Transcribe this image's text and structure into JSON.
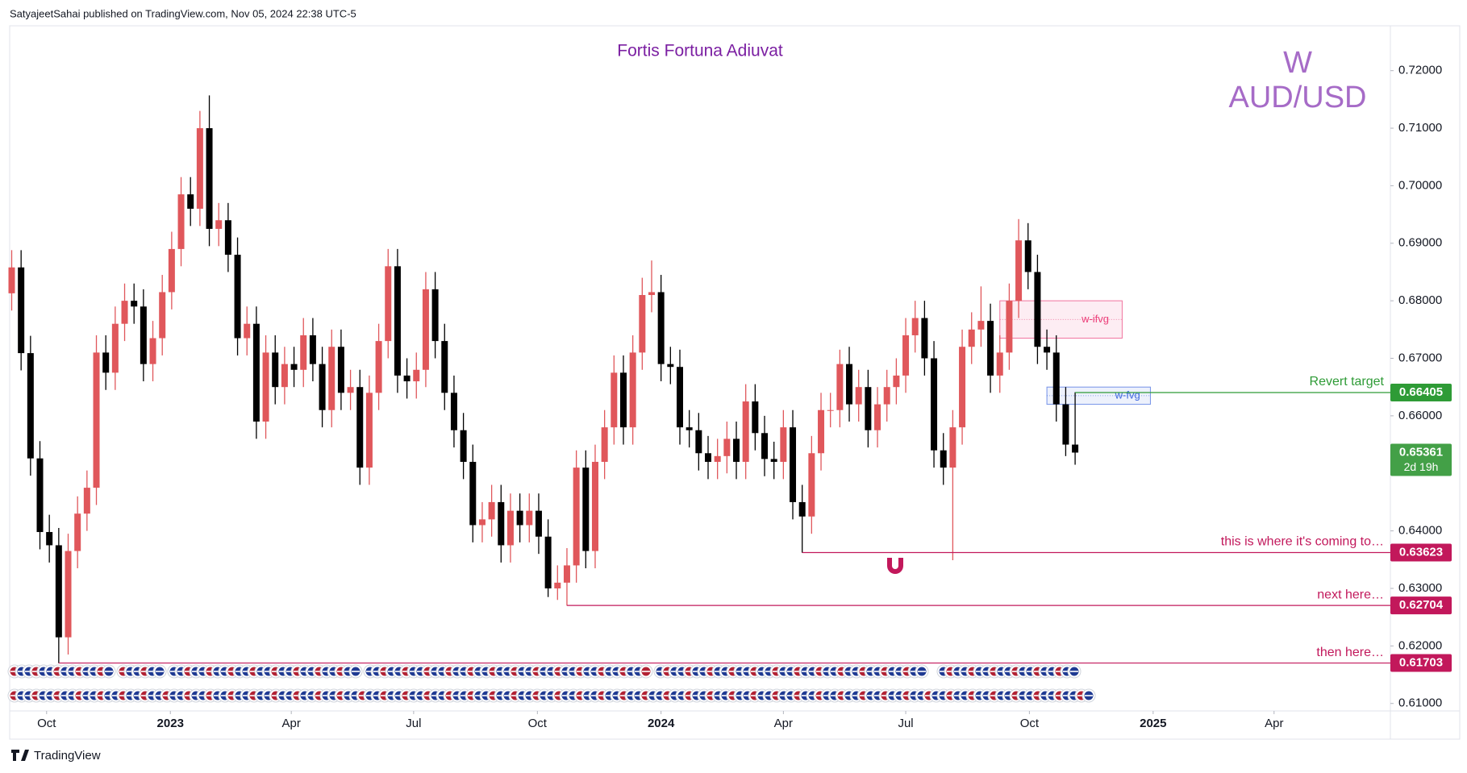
{
  "header": {
    "byline": "SatyajeetSahai published on TradingView.com, Nov 05, 2024 22:38 UTC-5",
    "brand": "TradingView"
  },
  "chart_data": {
    "type": "candlestick",
    "title": "Fortis Fortuna Adiuvat",
    "interval": "W",
    "symbol": "AUD/USD",
    "open": [
      0.6813,
      0.6858,
      0.6709,
      0.6526,
      0.6398,
      0.6375,
      0.6215,
      0.6365,
      0.643,
      0.6475,
      0.671,
      0.6675,
      0.676,
      0.68,
      0.679,
      0.669,
      0.6735,
      0.6815,
      0.689,
      0.6985,
      0.696,
      0.71,
      0.6925,
      0.694,
      0.688,
      0.6735,
      0.676,
      0.659,
      0.671,
      0.665,
      0.669,
      0.668,
      0.674,
      0.669,
      0.661,
      0.672,
      0.664,
      0.665,
      0.651,
      0.664,
      0.673,
      0.686,
      0.667,
      0.666,
      0.668,
      0.682,
      0.673,
      0.664,
      0.6575,
      0.652,
      0.641,
      0.642,
      0.645,
      0.6375,
      0.6435,
      0.641,
      0.6435,
      0.639,
      0.63,
      0.631,
      0.634,
      0.651,
      0.6365,
      0.652,
      0.658,
      0.6675,
      0.658,
      0.671,
      0.681,
      0.6815,
      0.669,
      0.6685,
      0.658,
      0.6575,
      0.6535,
      0.652,
      0.653,
      0.656,
      0.652,
      0.6625,
      0.657,
      0.6525,
      0.652,
      0.658,
      0.645,
      0.6425,
      0.6535,
      0.661,
      0.661,
      0.669,
      0.662,
      0.665,
      0.6575,
      0.662,
      0.665,
      0.667,
      0.674,
      0.677,
      0.67,
      0.654,
      0.651,
      0.658,
      0.672,
      0.675,
      0.6765,
      0.667,
      0.671,
      0.68,
      0.6905,
      0.685,
      0.672,
      0.671,
      0.662,
      0.655
    ],
    "high": [
      0.6888,
      0.6888,
      0.6739,
      0.6556,
      0.6428,
      0.6405,
      0.6395,
      0.646,
      0.6505,
      0.674,
      0.674,
      0.679,
      0.683,
      0.683,
      0.682,
      0.6765,
      0.6845,
      0.692,
      0.7015,
      0.7015,
      0.713,
      0.7157,
      0.697,
      0.697,
      0.691,
      0.679,
      0.679,
      0.674,
      0.674,
      0.672,
      0.672,
      0.677,
      0.677,
      0.672,
      0.675,
      0.675,
      0.668,
      0.668,
      0.667,
      0.676,
      0.689,
      0.689,
      0.67,
      0.671,
      0.685,
      0.685,
      0.676,
      0.667,
      0.6605,
      0.655,
      0.645,
      0.648,
      0.648,
      0.6465,
      0.6465,
      0.6465,
      0.6465,
      0.642,
      0.634,
      0.637,
      0.654,
      0.654,
      0.655,
      0.661,
      0.6705,
      0.6705,
      0.674,
      0.684,
      0.687,
      0.6845,
      0.672,
      0.6715,
      0.661,
      0.6605,
      0.6565,
      0.656,
      0.659,
      0.659,
      0.6655,
      0.6655,
      0.66,
      0.6555,
      0.661,
      0.661,
      0.648,
      0.6565,
      0.664,
      0.664,
      0.6715,
      0.672,
      0.668,
      0.668,
      0.665,
      0.668,
      0.67,
      0.677,
      0.68,
      0.68,
      0.673,
      0.657,
      0.661,
      0.675,
      0.678,
      0.6825,
      0.6795,
      0.674,
      0.683,
      0.6942,
      0.6935,
      0.688,
      0.675,
      0.674,
      0.665,
      0.6641
    ],
    "low": [
      0.6783,
      0.6679,
      0.6496,
      0.6368,
      0.6345,
      0.617,
      0.6185,
      0.6335,
      0.64,
      0.6445,
      0.6645,
      0.6645,
      0.673,
      0.676,
      0.666,
      0.666,
      0.6705,
      0.6785,
      0.686,
      0.693,
      0.693,
      0.6895,
      0.6895,
      0.685,
      0.6705,
      0.6705,
      0.656,
      0.656,
      0.662,
      0.662,
      0.665,
      0.665,
      0.666,
      0.658,
      0.658,
      0.661,
      0.661,
      0.648,
      0.648,
      0.661,
      0.67,
      0.664,
      0.663,
      0.663,
      0.665,
      0.67,
      0.661,
      0.6545,
      0.649,
      0.638,
      0.638,
      0.639,
      0.6345,
      0.6345,
      0.638,
      0.638,
      0.636,
      0.6285,
      0.628,
      0.627,
      0.631,
      0.6335,
      0.6335,
      0.649,
      0.655,
      0.655,
      0.655,
      0.668,
      0.678,
      0.666,
      0.6655,
      0.655,
      0.6545,
      0.6505,
      0.649,
      0.649,
      0.65,
      0.649,
      0.649,
      0.654,
      0.6495,
      0.649,
      0.649,
      0.642,
      0.6362,
      0.6395,
      0.6505,
      0.658,
      0.658,
      0.659,
      0.659,
      0.6545,
      0.6545,
      0.659,
      0.662,
      0.664,
      0.671,
      0.667,
      0.651,
      0.648,
      0.6349,
      0.655,
      0.669,
      0.672,
      0.664,
      0.664,
      0.668,
      0.677,
      0.682,
      0.669,
      0.668,
      0.659,
      0.653,
      0.6515
    ],
    "close": [
      0.6858,
      0.6709,
      0.6526,
      0.6398,
      0.6375,
      0.6215,
      0.6365,
      0.643,
      0.6475,
      0.671,
      0.6675,
      0.676,
      0.68,
      0.679,
      0.669,
      0.6735,
      0.6815,
      0.689,
      0.6985,
      0.696,
      0.71,
      0.6925,
      0.694,
      0.688,
      0.6735,
      0.676,
      0.659,
      0.671,
      0.665,
      0.669,
      0.668,
      0.674,
      0.669,
      0.661,
      0.672,
      0.664,
      0.665,
      0.651,
      0.664,
      0.673,
      0.686,
      0.667,
      0.666,
      0.668,
      0.682,
      0.673,
      0.664,
      0.6575,
      0.652,
      0.641,
      0.642,
      0.645,
      0.6375,
      0.6435,
      0.641,
      0.6435,
      0.639,
      0.63,
      0.631,
      0.634,
      0.651,
      0.6365,
      0.652,
      0.658,
      0.6675,
      0.658,
      0.671,
      0.681,
      0.6815,
      0.669,
      0.6685,
      0.658,
      0.6575,
      0.6535,
      0.652,
      0.653,
      0.656,
      0.652,
      0.6625,
      0.657,
      0.6525,
      0.652,
      0.658,
      0.645,
      0.6425,
      0.6535,
      0.661,
      0.661,
      0.669,
      0.662,
      0.665,
      0.6575,
      0.662,
      0.665,
      0.667,
      0.674,
      0.677,
      0.67,
      0.654,
      0.651,
      0.658,
      0.672,
      0.675,
      0.6765,
      0.667,
      0.671,
      0.68,
      0.6905,
      0.685,
      0.672,
      0.671,
      0.662,
      0.655,
      0.65361
    ],
    "countdown": "2d 19h",
    "up_color": "#e0575b",
    "down_color": "#000000",
    "last_price_color": "#43a047",
    "xlim": [
      -0.3,
      146.5
    ],
    "xticks": [
      {
        "value": 3.71,
        "label": "Oct"
      },
      {
        "value": 16.86,
        "label": "2023"
      },
      {
        "value": 29.71,
        "label": "Apr"
      },
      {
        "value": 42.71,
        "label": "Jul"
      },
      {
        "value": 55.86,
        "label": "Oct"
      },
      {
        "value": 69.0,
        "label": "2024"
      },
      {
        "value": 82.0,
        "label": "Apr"
      },
      {
        "value": 95.0,
        "label": "Jul"
      },
      {
        "value": 108.14,
        "label": "Oct"
      },
      {
        "value": 121.29,
        "label": "2025"
      },
      {
        "value": 134.14,
        "label": "Apr"
      }
    ],
    "ylim": [
      0.6087,
      0.7278
    ],
    "yticks": [
      {
        "value": 0.61,
        "label": "0.61000"
      },
      {
        "value": 0.62,
        "label": "0.62000"
      },
      {
        "value": 0.63,
        "label": "0.63000"
      },
      {
        "value": 0.64,
        "label": "0.64000"
      },
      {
        "value": 0.66,
        "label": "0.66000"
      },
      {
        "value": 0.67,
        "label": "0.67000"
      },
      {
        "value": 0.68,
        "label": "0.68000"
      },
      {
        "value": 0.69,
        "label": "0.69000"
      },
      {
        "value": 0.7,
        "label": "0.70000"
      },
      {
        "value": 0.71,
        "label": "0.71000"
      },
      {
        "value": 0.72,
        "label": "0.72000"
      }
    ],
    "grid": false,
    "levels": [
      {
        "label": "Revert target",
        "value": 0.66405,
        "color": "#2e9b36"
      },
      {
        "label": "this is where it's coming to…",
        "value": 0.63623,
        "color": "#c2185b"
      },
      {
        "label": "next here…",
        "value": 0.62704,
        "color": "#c2185b"
      },
      {
        "label": "then here…",
        "value": 0.61703,
        "color": "#c2185b"
      }
    ],
    "zones": [
      {
        "label": "w-ifvg",
        "x": [
          105,
          118
        ],
        "top": 0.68,
        "bottom": 0.6735,
        "color": "#e91e63"
      },
      {
        "label": "w-fvg",
        "x": [
          110,
          121
        ],
        "top": 0.665,
        "bottom": 0.662,
        "color": "#1e4fd8"
      }
    ]
  }
}
